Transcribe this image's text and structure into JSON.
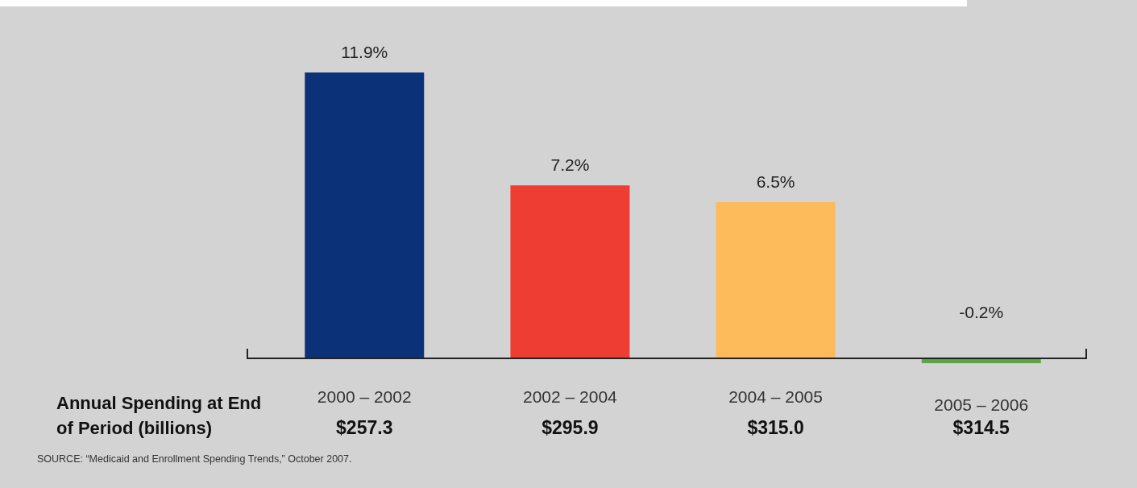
{
  "chart_data": {
    "type": "bar",
    "categories": [
      "2000 – 2002",
      "2002 – 2004",
      "2004 – 2005",
      "2005 – 2006"
    ],
    "values": [
      11.9,
      7.2,
      6.5,
      -0.2
    ],
    "colors": [
      "#0b3278",
      "#ee3e33",
      "#fdbb5c",
      "#5aa544"
    ],
    "value_labels": [
      "11.9%",
      "7.2%",
      "6.5%",
      "-0.2%"
    ],
    "annotations": [
      "Annual Spending at End of Period (billions)",
      "$257.3",
      "$295.9",
      "$315.0",
      "$314.5",
      "SOURCE: “Medicaid and Enrollment Spending Trends,” October 2007."
    ]
  }
}
